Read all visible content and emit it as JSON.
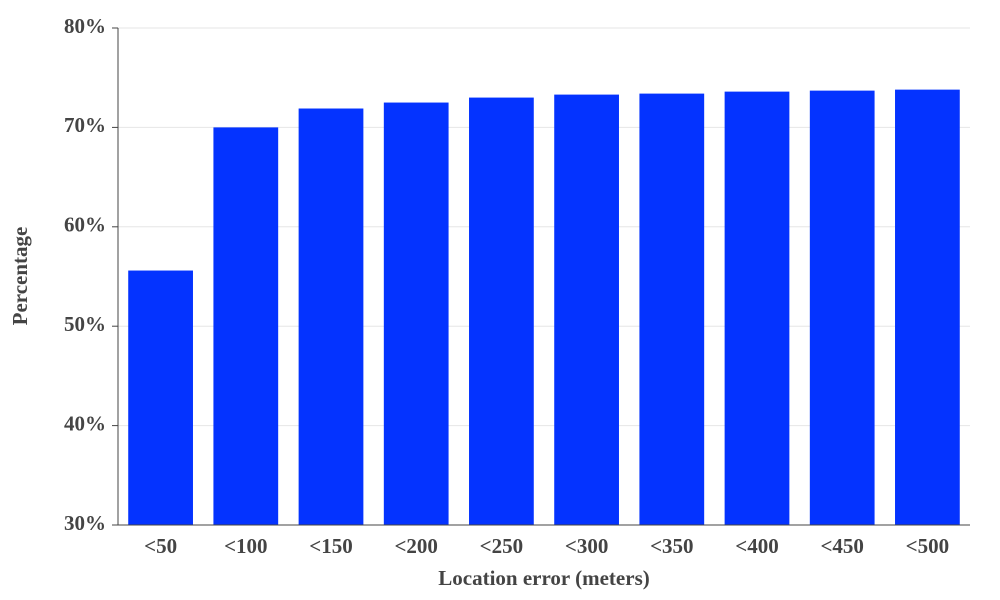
{
  "chart_data": {
    "type": "bar",
    "x_label": "Location error (meters)",
    "y_label": "Percentage",
    "categories": [
      "<50",
      "<100",
      "<150",
      "<200",
      "<250",
      "<300",
      "<350",
      "<400",
      "<450",
      "<500"
    ],
    "values": [
      55.6,
      70.0,
      71.9,
      72.5,
      73.0,
      73.3,
      73.4,
      73.6,
      73.7,
      73.8
    ],
    "color": "#0433ff",
    "ylim": [
      30,
      80
    ],
    "yticks": [
      {
        "value": 30,
        "label": "30%"
      },
      {
        "value": 40,
        "label": "40%"
      },
      {
        "value": 50,
        "label": "50%"
      },
      {
        "value": 60,
        "label": "60%"
      },
      {
        "value": 70,
        "label": "70%"
      },
      {
        "value": 80,
        "label": "80%"
      }
    ],
    "grid": true
  }
}
